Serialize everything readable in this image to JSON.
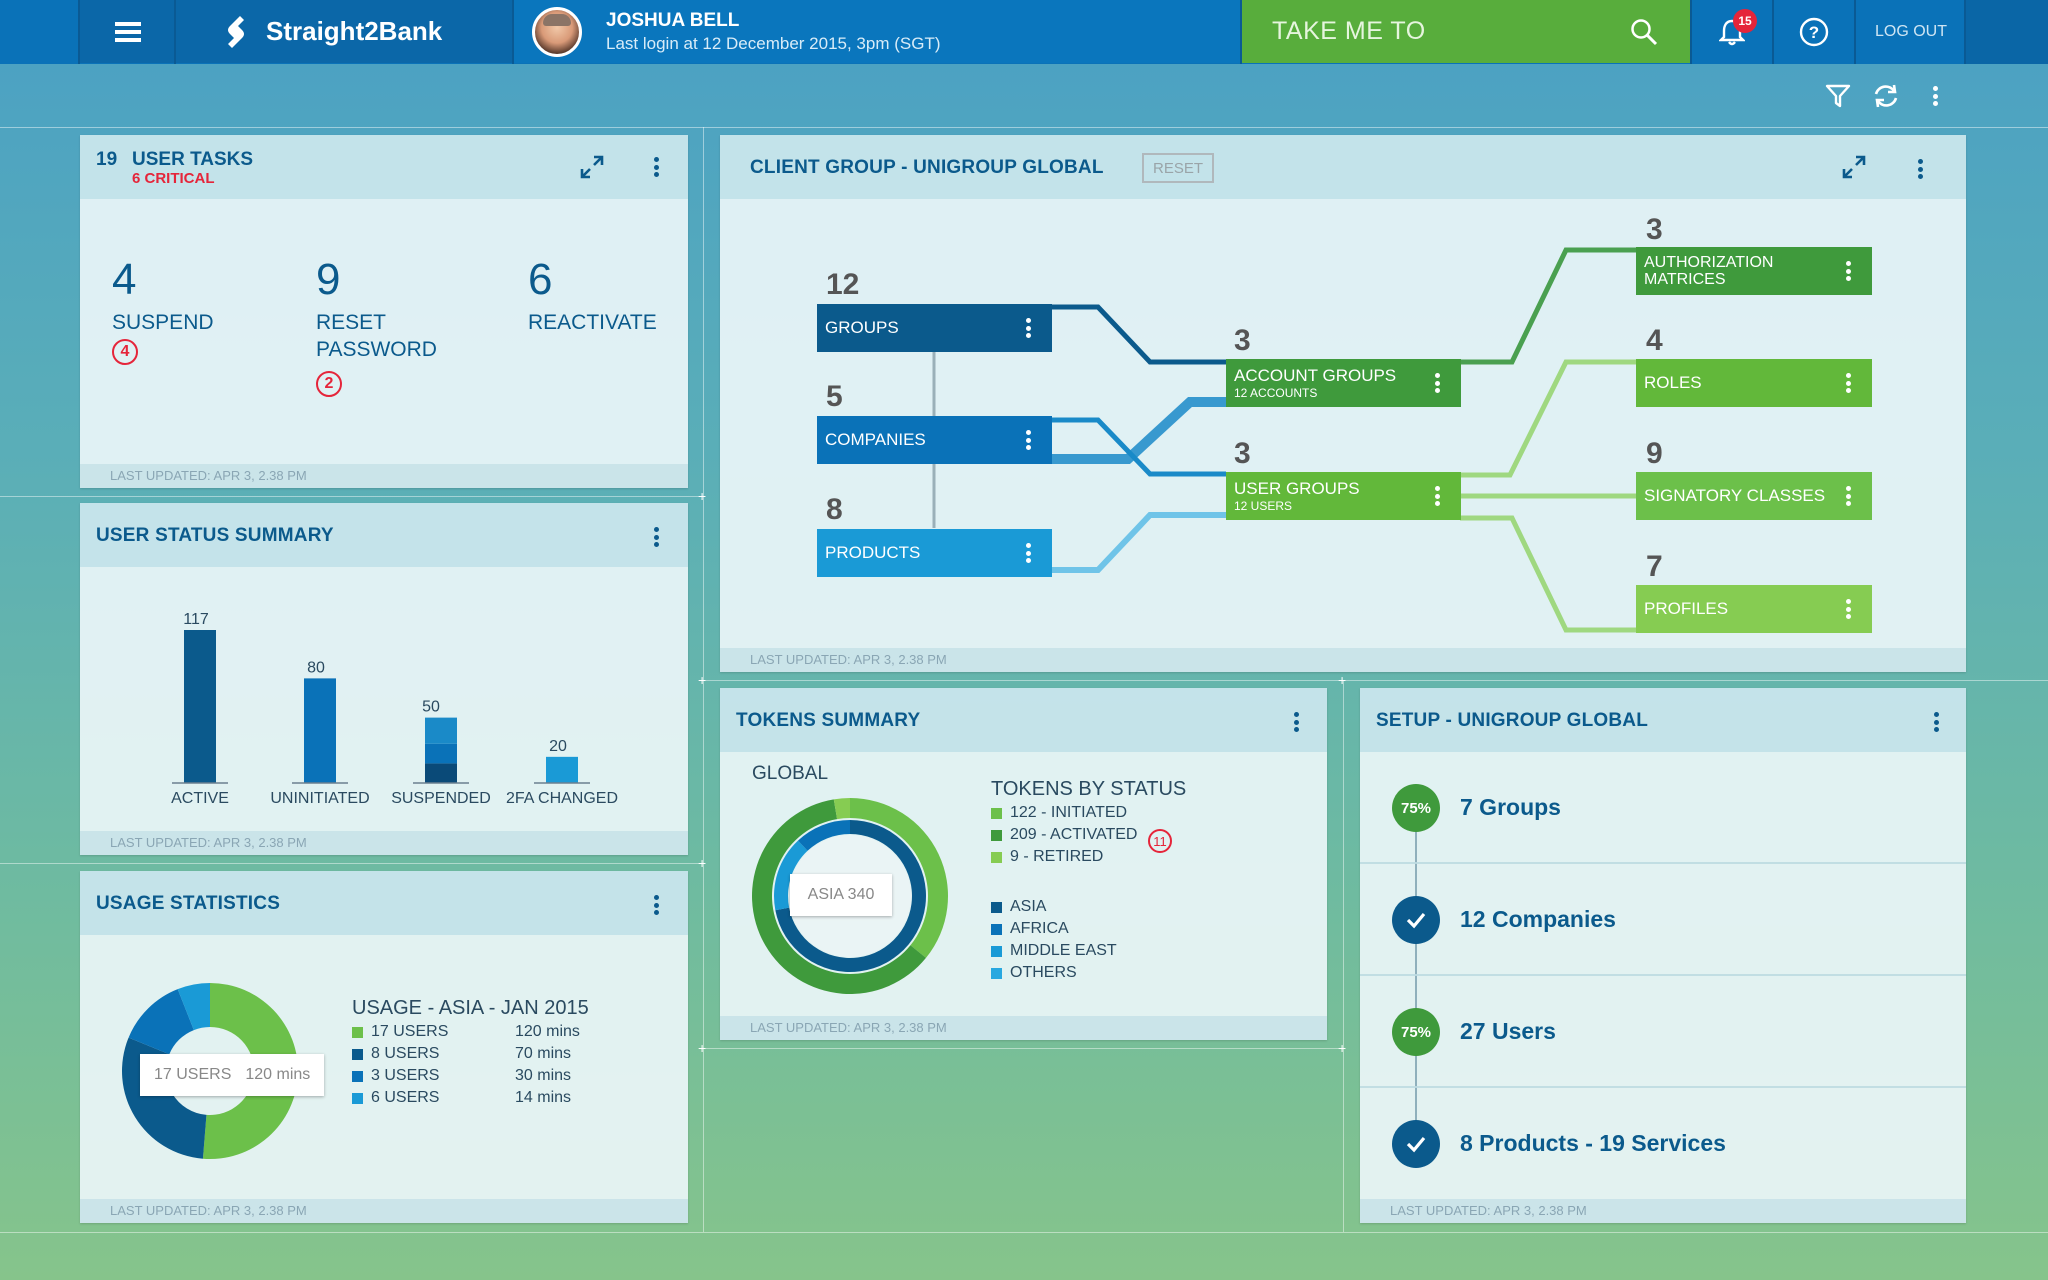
{
  "header": {
    "brand": "Straight2Bank",
    "user_name": "JOSHUA BELL",
    "last_login": "Last login at 12 December 2015, 3pm (SGT)",
    "search_placeholder": "TAKE ME TO",
    "notification_count": "15",
    "logout_label": "LOG OUT",
    "icons": [
      "menu-icon",
      "logo-icon",
      "avatar",
      "search-icon",
      "bell-icon",
      "help-icon"
    ]
  },
  "toolbar": {
    "icons": [
      "filter-icon",
      "refresh-icon",
      "more-icon"
    ]
  },
  "user_tasks": {
    "count": "19",
    "title": "USER TASKS",
    "critical": "6 CRITICAL",
    "items": [
      {
        "value": "4",
        "label": "SUSPEND",
        "badge": "4"
      },
      {
        "value": "9",
        "label": "RESET PASSWORD",
        "badge": "2"
      },
      {
        "value": "6",
        "label": "REACTIVATE",
        "badge": ""
      }
    ],
    "footer": "LAST UPDATED: APR 3, 2.38 PM"
  },
  "user_status": {
    "title": "USER STATUS SUMMARY",
    "footer": "LAST UPDATED: APR 3, 2.38 PM",
    "chart_data": {
      "type": "bar",
      "categories": [
        "ACTIVE",
        "UNINITIATED",
        "SUSPENDED",
        "2FA CHANGED"
      ],
      "values": [
        117,
        80,
        50,
        20
      ],
      "ylim": [
        0,
        130
      ],
      "colors": [
        "#0b5a8c",
        "#0a72b8",
        "#0b5a8c",
        "#1a9ad6"
      ]
    }
  },
  "usage": {
    "title": "USAGE STATISTICS",
    "chart_title": "USAGE - ASIA - JAN 2015",
    "tooltip": {
      "users": "17 USERS",
      "mins": "120 mins"
    },
    "footer": "LAST UPDATED: APR 3, 2.38 PM",
    "chart_data": {
      "type": "pie",
      "title": "USAGE - ASIA - JAN 2015",
      "slices": [
        {
          "label": "17 USERS",
          "value": 120,
          "display": "120 mins",
          "color": "#6cc04a"
        },
        {
          "label": "8 USERS",
          "value": 70,
          "display": "70 mins",
          "color": "#0b5a8c"
        },
        {
          "label": "3 USERS",
          "value": 30,
          "display": "30 mins",
          "color": "#0a72b8"
        },
        {
          "label": "6 USERS",
          "value": 14,
          "display": "14 mins",
          "color": "#1a9ad6"
        }
      ]
    }
  },
  "client_group": {
    "title": "CLIENT GROUP - UNIGROUP GLOBAL",
    "reset_label": "RESET",
    "footer": "LAST UPDATED: APR 3, 2.38 PM",
    "left_nodes": [
      {
        "count": "12",
        "label": "GROUPS",
        "color": "#0b5a8c"
      },
      {
        "count": "5",
        "label": "COMPANIES",
        "color": "#0a72b8"
      },
      {
        "count": "8",
        "label": "PRODUCTS",
        "color": "#1a9ad6"
      }
    ],
    "mid_nodes": [
      {
        "count": "3",
        "label": "ACCOUNT GROUPS",
        "sub": "12 ACCOUNTS",
        "color": "#3f9a3c"
      },
      {
        "count": "3",
        "label": "USER GROUPS",
        "sub": "12 USERS",
        "color": "#62b83a"
      }
    ],
    "right_nodes": [
      {
        "count": "3",
        "label": "AUTHORIZATION MATRICES",
        "color": "#3f9a3c"
      },
      {
        "count": "4",
        "label": "ROLES",
        "color": "#62b83a"
      },
      {
        "count": "9",
        "label": "SIGNATORY CLASSES",
        "color": "#6cc04a"
      },
      {
        "count": "7",
        "label": "PROFILES",
        "color": "#86cc52"
      }
    ]
  },
  "tokens": {
    "title": "TOKENS SUMMARY",
    "global_label": "GLOBAL",
    "status_title": "TOKENS BY STATUS",
    "tooltip": "ASIA 340",
    "activated_badge": "11",
    "footer": "LAST UPDATED: APR 3, 2.38 PM",
    "chart_data": {
      "type": "pie",
      "rings": [
        {
          "name": "status",
          "slices": [
            {
              "label": "122 - INITIATED",
              "value": 122,
              "color": "#6cc04a"
            },
            {
              "label": "209 - ACTIVATED",
              "value": 209,
              "color": "#3f9a3c"
            },
            {
              "label": "9 - RETIRED",
              "value": 9,
              "color": "#86cc52"
            }
          ]
        },
        {
          "name": "region",
          "slices": [
            {
              "label": "ASIA",
              "value": 340,
              "color": "#0b5a8c"
            },
            {
              "label": "AFRICA",
              "value": 0,
              "color": "#0a72b8"
            },
            {
              "label": "MIDDLE EAST",
              "value": 0,
              "color": "#1a9ad6"
            },
            {
              "label": "OTHERS",
              "value": 0,
              "color": "#29a8e0"
            }
          ]
        }
      ]
    }
  },
  "setup": {
    "title": "SETUP - UNIGROUP GLOBAL",
    "footer": "LAST UPDATED: APR 3, 2.38 PM",
    "steps": [
      {
        "status": "75%",
        "label": "7 Groups",
        "color": "#3f9a3c"
      },
      {
        "status": "check",
        "label": "12 Companies",
        "color": "#0b5a8c"
      },
      {
        "status": "75%",
        "label": "27 Users",
        "color": "#3f9a3c"
      },
      {
        "status": "check",
        "label": "8 Products - 19 Services",
        "color": "#0b5a8c"
      }
    ]
  }
}
